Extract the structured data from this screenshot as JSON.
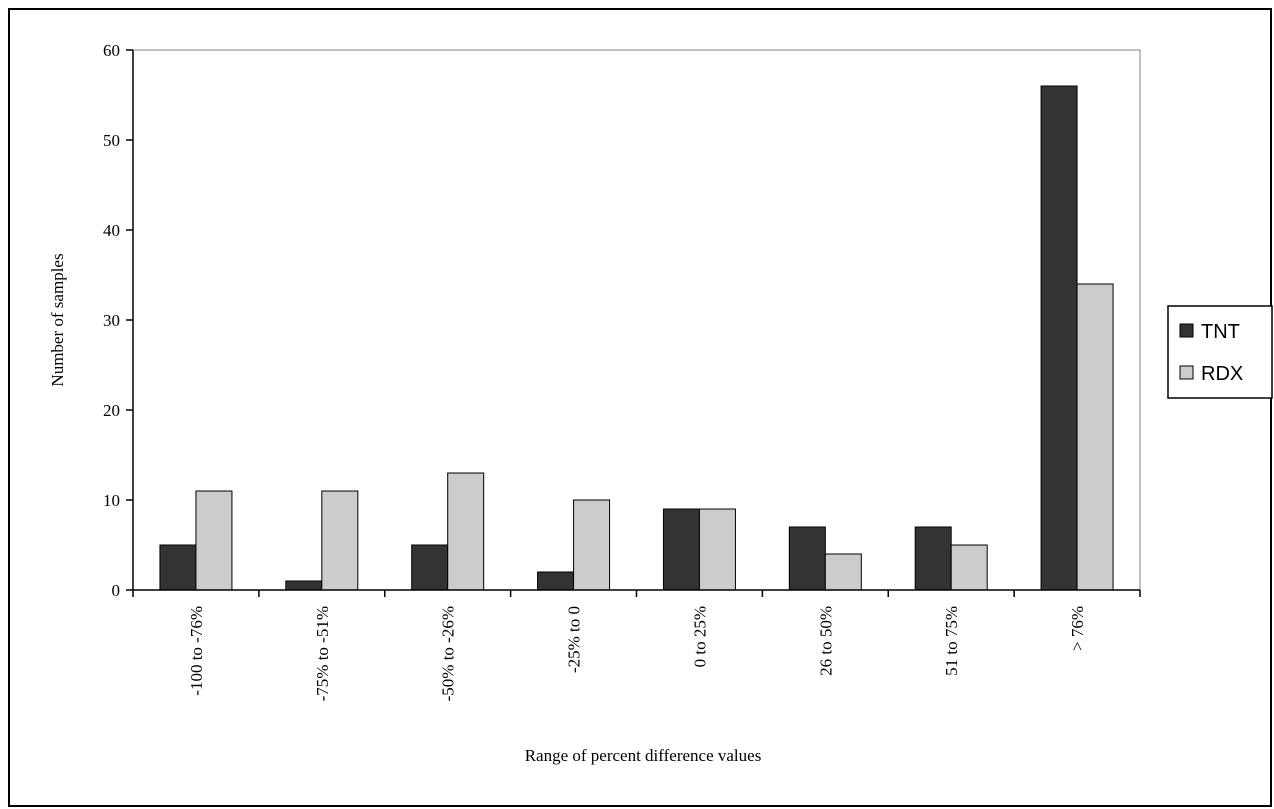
{
  "chart_data": {
    "type": "bar",
    "title": "",
    "xlabel": "Range of percent difference values",
    "ylabel": "Number of samples",
    "ylim": [
      0,
      60
    ],
    "yticks": [
      0,
      10,
      20,
      30,
      40,
      50,
      60
    ],
    "categories": [
      "-100 to -76%",
      "-75% to -51%",
      "-50% to -26%",
      "-25% to 0",
      "0 to 25%",
      "26 to 50%",
      "51 to 75%",
      "> 76%"
    ],
    "series": [
      {
        "name": "TNT",
        "values": [
          5,
          1,
          5,
          2,
          9,
          7,
          7,
          56
        ],
        "color": "#333333"
      },
      {
        "name": "RDX",
        "values": [
          11,
          11,
          13,
          10,
          9,
          4,
          5,
          34
        ],
        "color": "#cccccc"
      }
    ],
    "grid": false,
    "legend_position": "right"
  }
}
